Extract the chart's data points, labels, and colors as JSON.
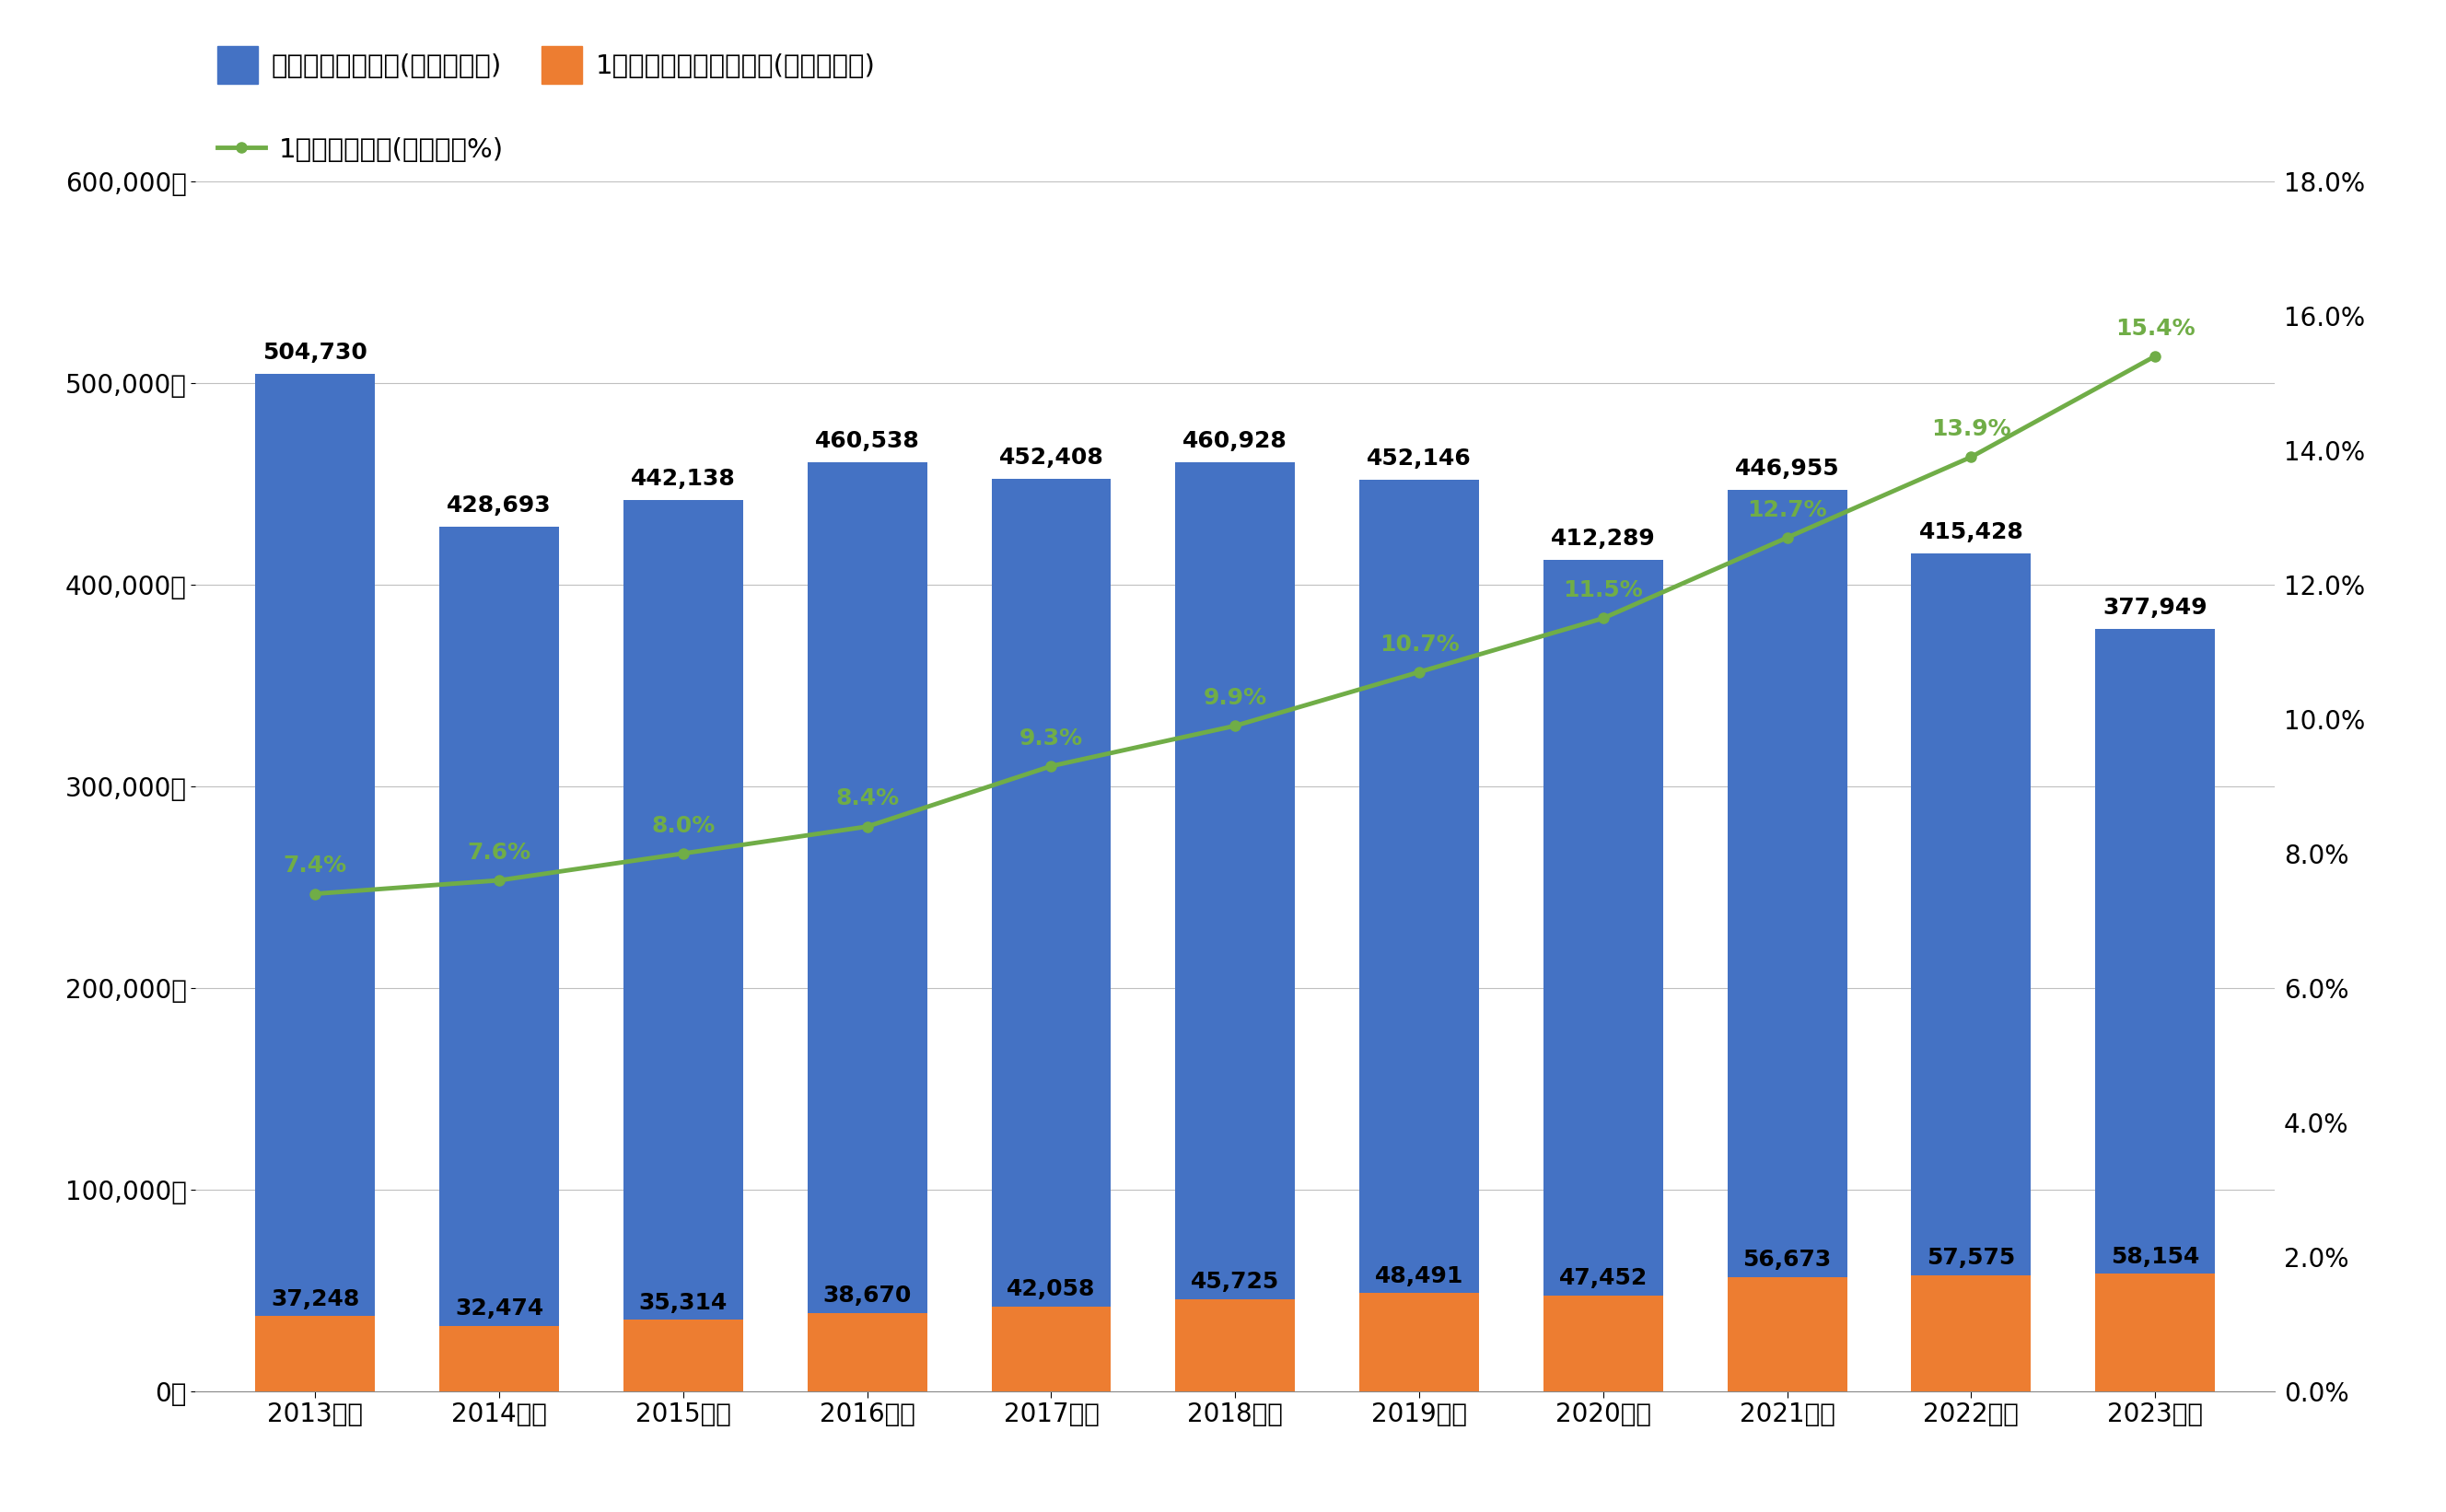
{
  "years": [
    "2013年度",
    "2014年度",
    "2015年度",
    "2016年度",
    "2017年度",
    "2018年度",
    "2019年度",
    "2020年度",
    "2021年度",
    "2022年度",
    "2023年度"
  ],
  "total": [
    504730,
    428693,
    442138,
    460538,
    452408,
    460928,
    452146,
    412289,
    446955,
    415428,
    377949
  ],
  "single_story": [
    37248,
    32474,
    35314,
    38670,
    42058,
    45725,
    48491,
    47452,
    56673,
    57575,
    58154
  ],
  "ratio": [
    7.4,
    7.6,
    8.0,
    8.4,
    9.3,
    9.9,
    10.7,
    11.5,
    12.7,
    13.9,
    15.4
  ],
  "bar_color_total": "#4472c4",
  "bar_color_single": "#ed7d31",
  "line_color": "#70ad47",
  "background_color": "#ffffff",
  "plot_bg_color": "#ffffff",
  "text_color": "#000000",
  "grid_color": "#c0c0c0",
  "ylim_left": [
    0,
    600000
  ],
  "ylim_right": [
    0.0,
    18.0
  ],
  "yticks_left": [
    0,
    100000,
    200000,
    300000,
    400000,
    500000,
    600000
  ],
  "yticks_right": [
    0.0,
    2.0,
    4.0,
    6.0,
    8.0,
    10.0,
    12.0,
    14.0,
    16.0,
    18.0
  ],
  "legend_total": "住居専用住宅総計(左目盛＝戸)",
  "legend_single": "1階建ての住居専用住宅(左目盛＝戸)",
  "legend_ratio": "1階建ての割合(右目盛＝%)",
  "bar_label_color": "#000000",
  "ratio_label_color": "#70ad47",
  "annotation_fontsize": 18,
  "ratio_annotation_fontsize": 18,
  "tick_fontsize": 20,
  "legend_fontsize": 21
}
